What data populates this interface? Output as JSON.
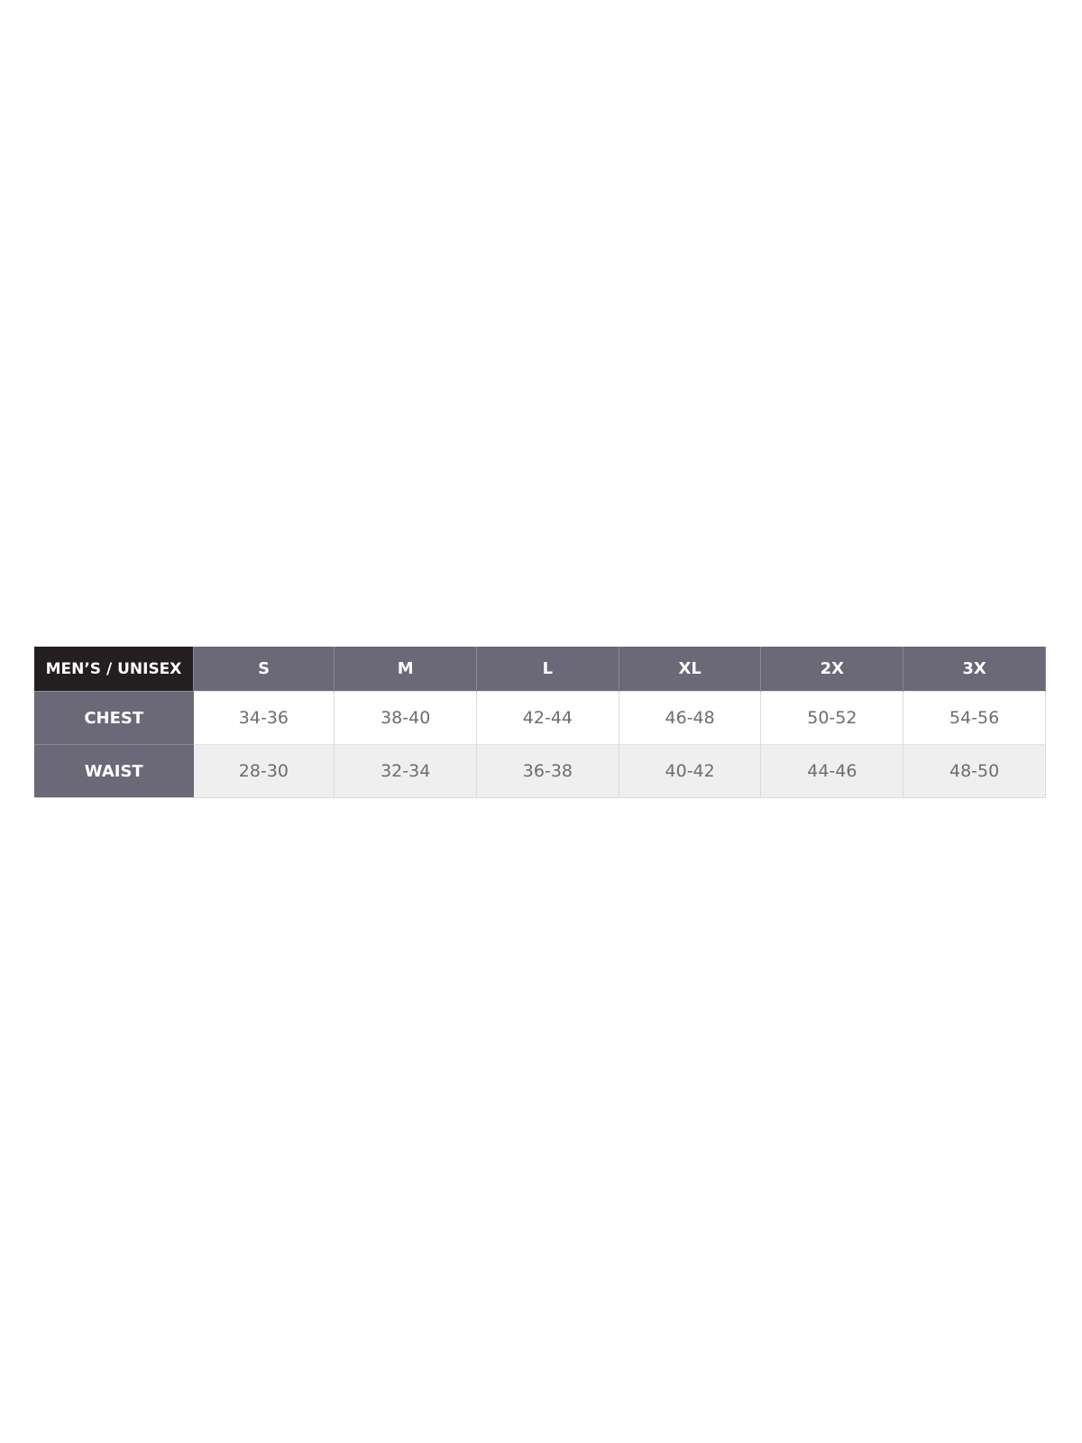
{
  "table": {
    "corner_label": "MEN’S / UNISEX",
    "sizes": [
      "S",
      "M",
      "L",
      "XL",
      "2X",
      "3X"
    ],
    "rows": [
      {
        "label": "CHEST",
        "values": [
          "34-36",
          "38-40",
          "42-44",
          "46-48",
          "50-52",
          "54-56"
        ]
      },
      {
        "label": "WAIST",
        "values": [
          "28-30",
          "32-34",
          "36-38",
          "40-42",
          "44-46",
          "48-50"
        ]
      }
    ]
  },
  "colors": {
    "header": "#6b6878",
    "corner": "#231f20",
    "alt_row": "#efefef",
    "text": "#6d6d6d"
  }
}
